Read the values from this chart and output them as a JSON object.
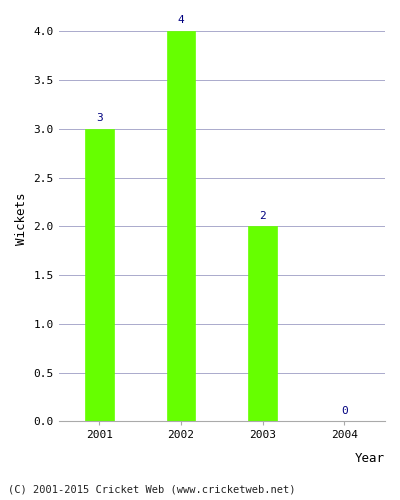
{
  "categories": [
    "2001",
    "2002",
    "2003",
    "2004"
  ],
  "values": [
    3,
    4,
    2,
    0
  ],
  "bar_color": "#66ff00",
  "label_color": "#000080",
  "ylabel": "Wickets",
  "xlabel": "Year",
  "ylim": [
    0,
    4.15
  ],
  "yticks": [
    0.0,
    0.5,
    1.0,
    1.5,
    2.0,
    2.5,
    3.0,
    3.5,
    4.0
  ],
  "footnote": "(C) 2001-2015 Cricket Web (www.cricketweb.net)",
  "background_color": "#ffffff",
  "plot_bg_color": "#ffffff",
  "grid_color": "#aaaacc",
  "label_fontsize": 8,
  "axis_label_fontsize": 9,
  "tick_fontsize": 8,
  "footnote_fontsize": 7.5,
  "bar_width": 0.35
}
